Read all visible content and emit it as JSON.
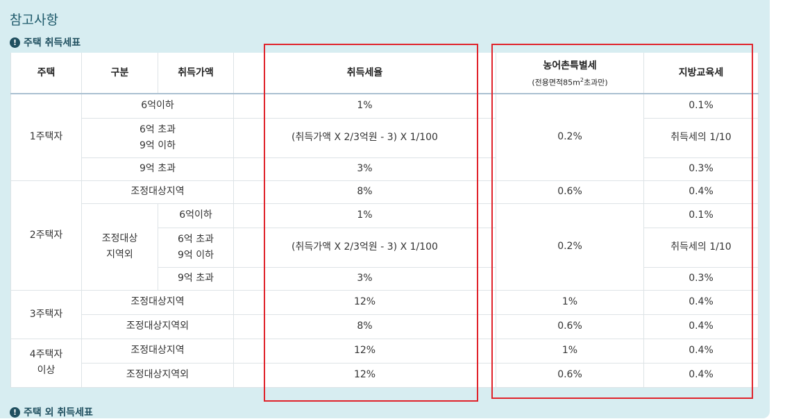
{
  "panel": {
    "title": "참고사항",
    "section1_title": "주택 취득세표",
    "section2_title": "주택 외 취득세표",
    "icon": "exclamation-circle-icon"
  },
  "table": {
    "headers": {
      "house": "주택",
      "category": "구분",
      "price": "취득가액",
      "rate": "취득세율",
      "rural_tax": "농어촌특별세",
      "rural_tax_note_pre": "(전용면적85m",
      "rural_tax_note_sup": "2",
      "rural_tax_note_post": "초과만)",
      "edu_tax": "지방교육세"
    },
    "groups": {
      "one": "1주택자",
      "two": "2주택자",
      "two_non_adjusted": "조정대상\n지역외",
      "three": "3주택자",
      "four": "4주택자\n이상"
    },
    "rows": {
      "r1": {
        "cat": "6억이하",
        "rate": "1%",
        "edu": "0.1%"
      },
      "r2": {
        "cat": "6억 초과\n9억 이하",
        "rate": "(취득가액 X 2/3억원 - 3) X 1/100",
        "edu": "취득세의 1/10"
      },
      "r3": {
        "cat": "9억 초과",
        "rate": "3%",
        "edu": "0.3%"
      },
      "r1_rural": "0.2%",
      "r4": {
        "cat": "조정대상지역",
        "rate": "8%",
        "rural": "0.6%",
        "edu": "0.4%"
      },
      "r5": {
        "price": "6억이하",
        "rate": "1%",
        "edu": "0.1%"
      },
      "r6": {
        "price": "6억 초과\n9억 이하",
        "rate": "(취득가액 X 2/3억원 - 3) X 1/100",
        "edu": "취득세의 1/10"
      },
      "r7": {
        "price": "9억 초과",
        "rate": "3%",
        "edu": "0.3%"
      },
      "r5_rural": "0.2%",
      "r8": {
        "cat": "조정대상지역",
        "rate": "12%",
        "rural": "1%",
        "edu": "0.4%"
      },
      "r9": {
        "cat": "조정대상지역외",
        "rate": "8%",
        "rural": "0.6%",
        "edu": "0.4%"
      },
      "r10": {
        "cat": "조정대상지역",
        "rate": "12%",
        "rural": "1%",
        "edu": "0.4%"
      },
      "r11": {
        "cat": "조정대상지역외",
        "rate": "12%",
        "rural": "0.6%",
        "edu": "0.4%"
      }
    }
  },
  "highlight_color": "#e0222a"
}
